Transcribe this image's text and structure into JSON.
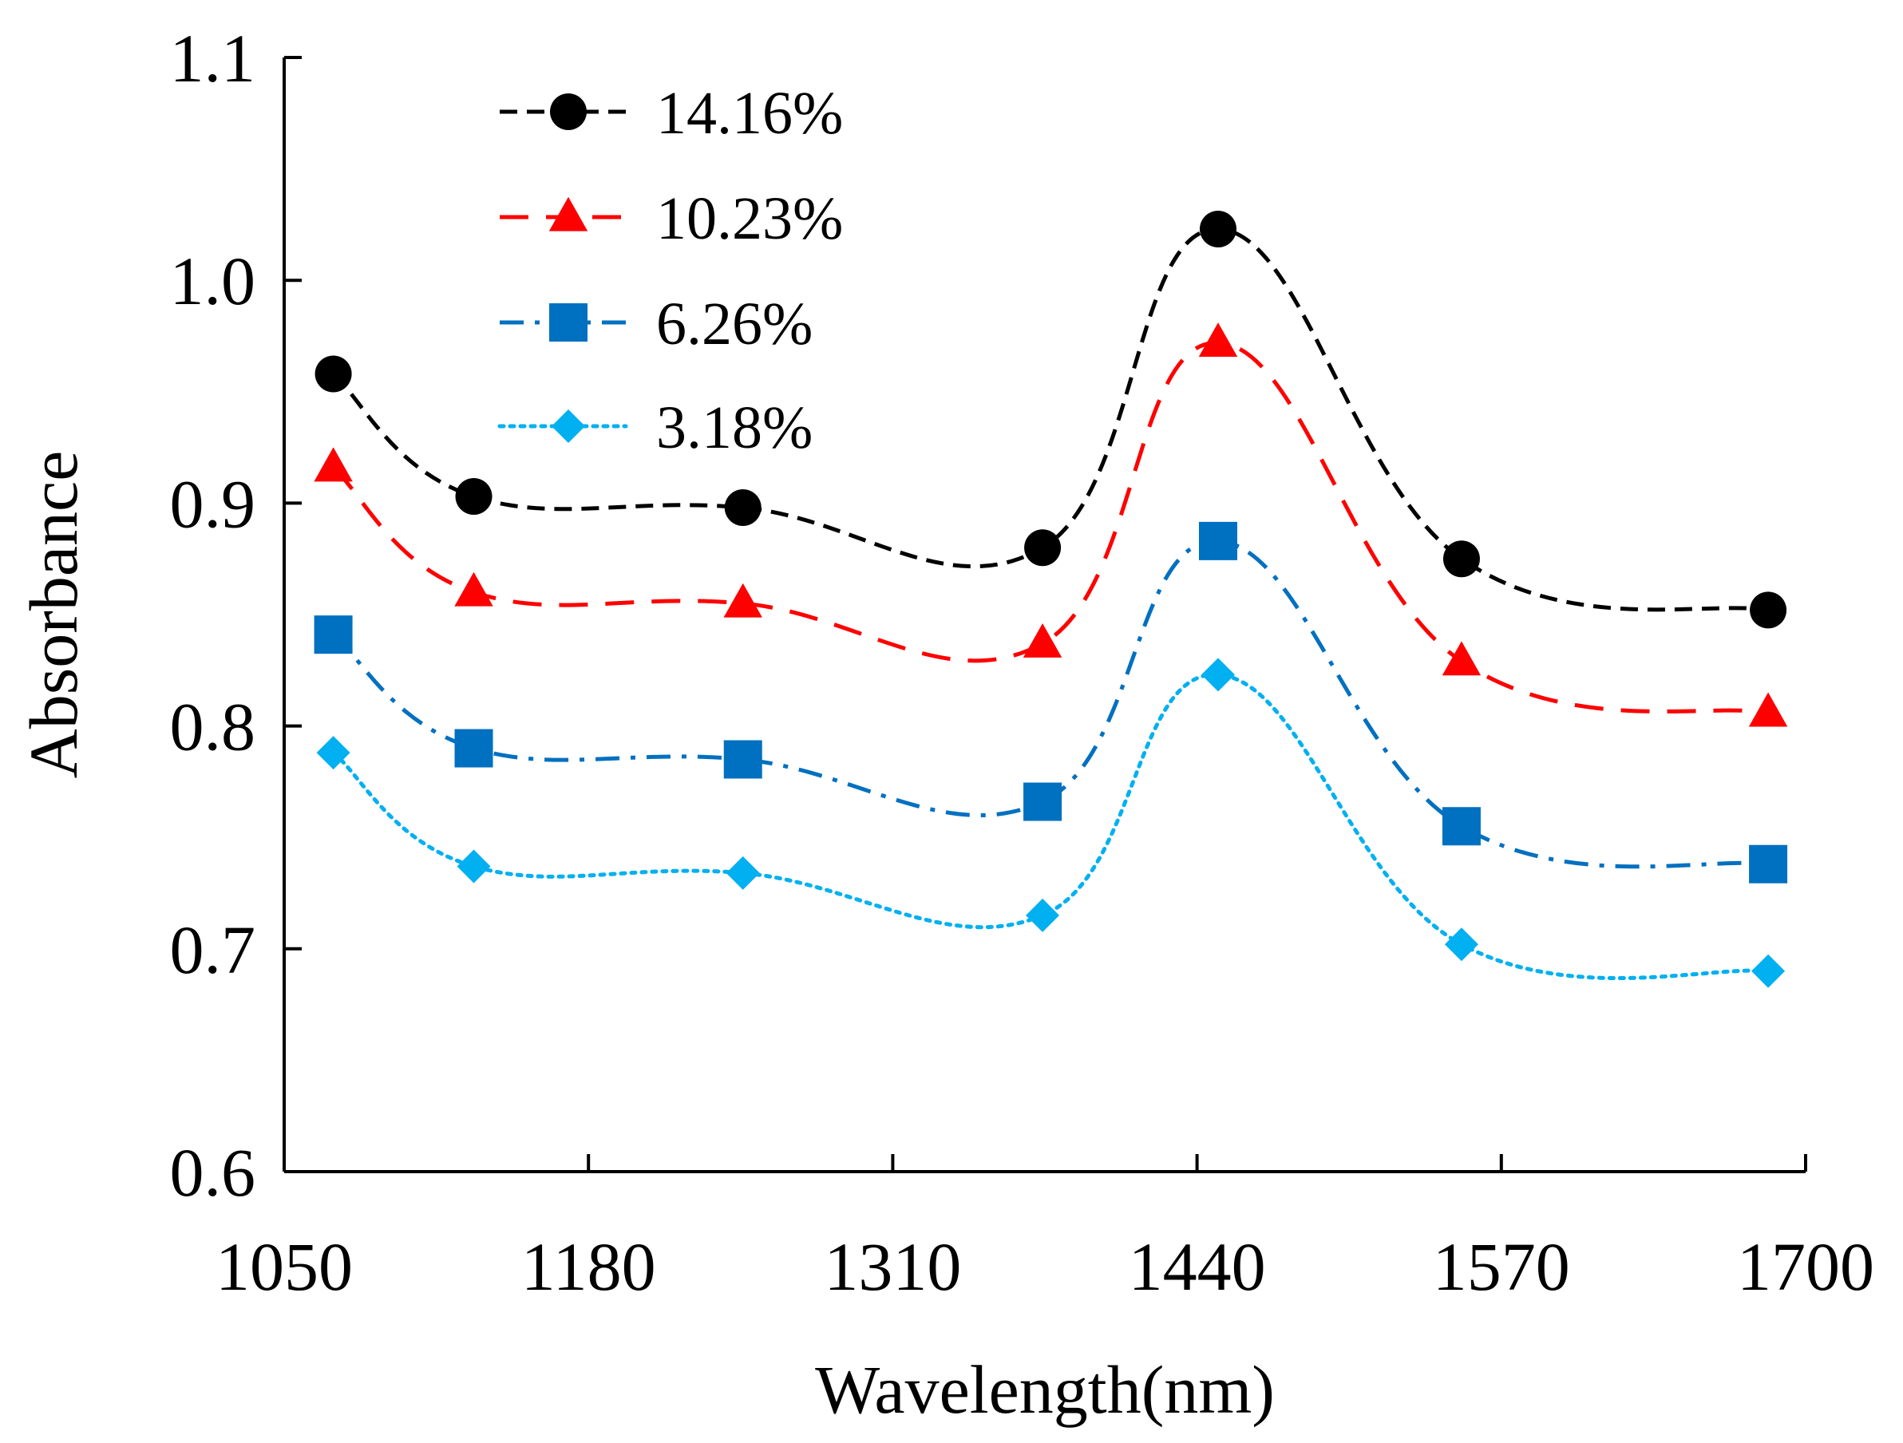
{
  "chart_data": {
    "type": "line",
    "title": "",
    "xlabel": "Wavelength(nm)",
    "ylabel": "Absorbance",
    "xlim": [
      1050,
      1700
    ],
    "ylim": [
      0.6,
      1.1
    ],
    "xticks": [
      1050,
      1180,
      1310,
      1440,
      1570,
      1700
    ],
    "yticks": [
      0.6,
      0.7,
      0.8,
      0.9,
      1.0,
      1.1
    ],
    "ytick_labels": [
      "0.6",
      "0.7",
      "0.8",
      "0.9",
      "1.0",
      "1.1"
    ],
    "grid": false,
    "legend_position": "top-left",
    "x": [
      1071,
      1131,
      1246,
      1374,
      1449,
      1553,
      1684
    ],
    "series": [
      {
        "name": "14.16%",
        "color": "#000000",
        "dash": "dashed",
        "marker": "circle",
        "values": [
          0.958,
          0.903,
          0.898,
          0.88,
          1.023,
          0.875,
          0.852
        ]
      },
      {
        "name": "10.23%",
        "color": "#ff0000",
        "dash": "longdash",
        "marker": "triangle",
        "values": [
          0.916,
          0.86,
          0.855,
          0.837,
          0.972,
          0.829,
          0.806
        ]
      },
      {
        "name": "6.26%",
        "color": "#0070c0",
        "dash": "dashdot",
        "marker": "square",
        "values": [
          0.841,
          0.79,
          0.785,
          0.766,
          0.883,
          0.755,
          0.738
        ]
      },
      {
        "name": "3.18%",
        "color": "#00b0f0",
        "dash": "dotted",
        "marker": "diamond",
        "values": [
          0.788,
          0.737,
          0.734,
          0.715,
          0.823,
          0.702,
          0.69
        ]
      }
    ]
  }
}
